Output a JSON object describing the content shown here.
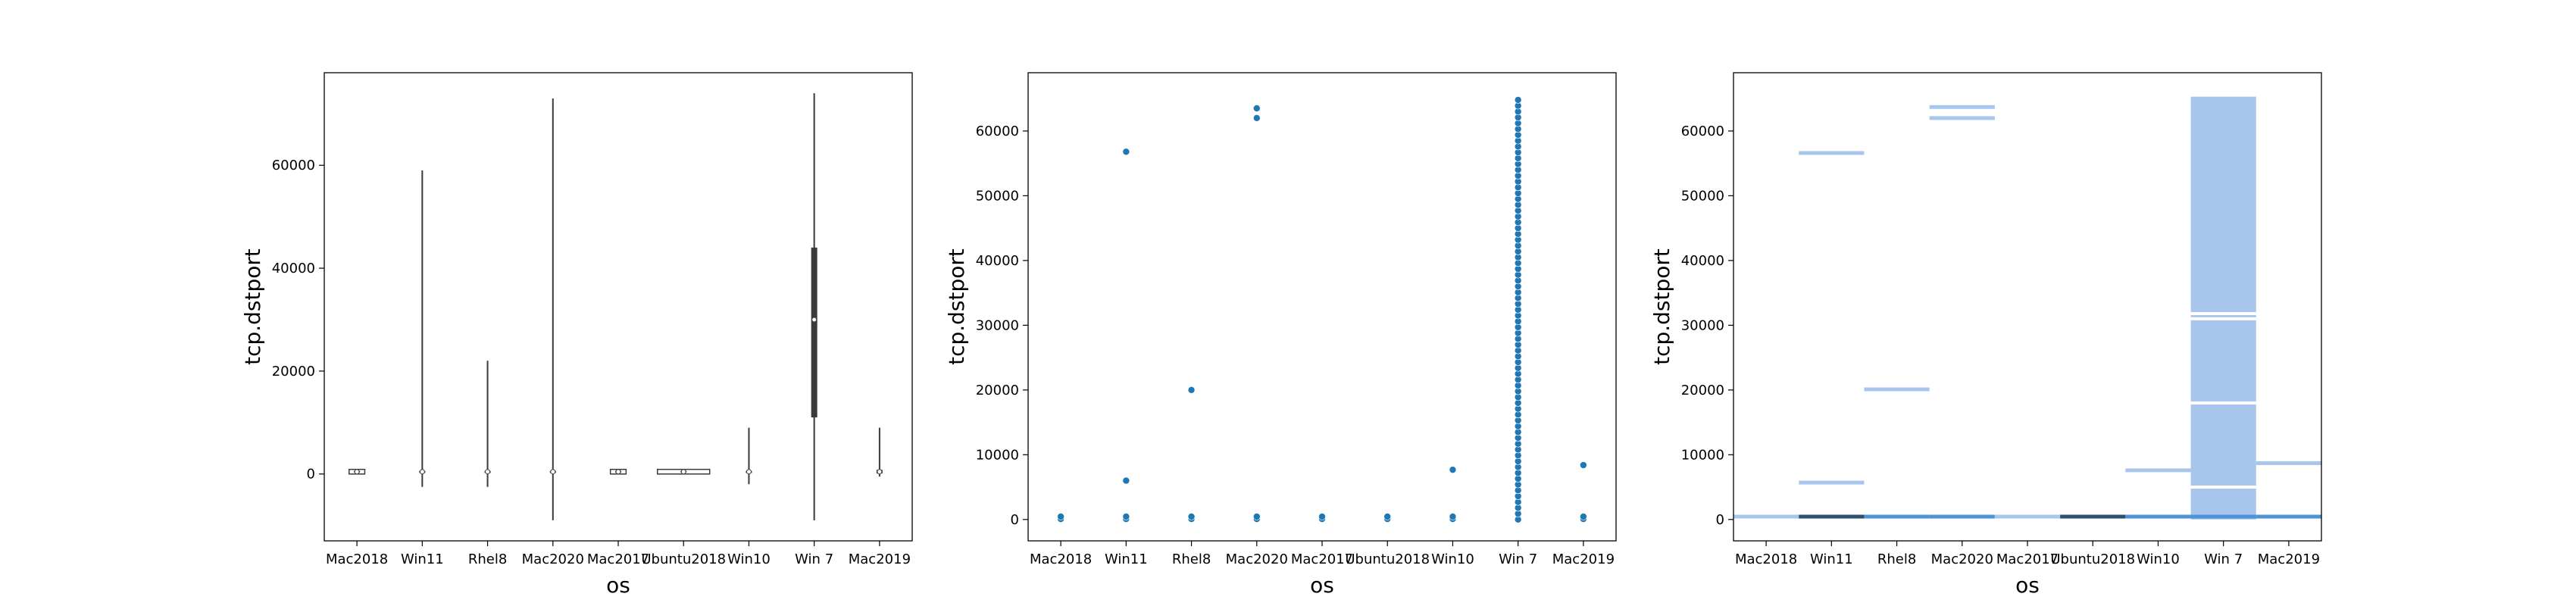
{
  "chart_data": [
    {
      "type": "violin",
      "xlabel": "os",
      "ylabel": "tcp.dstport",
      "categories": [
        "Mac2018",
        "Win11",
        "Rhel8",
        "Mac2020",
        "Mac2017",
        "Ubuntu2018",
        "Win10",
        "Win 7",
        "Mac2019"
      ],
      "ylim": [
        -13000,
        78000
      ],
      "yticks": [
        0,
        20000,
        40000,
        60000
      ],
      "violins": [
        {
          "category": "Mac2018",
          "min": 0,
          "max": 900,
          "q1": 300,
          "median": 443,
          "q3": 600,
          "halfwidth": 0.12
        },
        {
          "category": "Win11",
          "min": -2500,
          "max": 59000,
          "q1": 200,
          "median": 443,
          "q3": 600,
          "halfwidth": 0.02
        },
        {
          "category": "Rhel8",
          "min": -2500,
          "max": 22000,
          "q1": 200,
          "median": 443,
          "q3": 600,
          "halfwidth": 0.03
        },
        {
          "category": "Mac2020",
          "min": -9000,
          "max": 73000,
          "q1": 200,
          "median": 443,
          "q3": 600,
          "halfwidth": 0.02
        },
        {
          "category": "Mac2017",
          "min": 0,
          "max": 900,
          "q1": 300,
          "median": 443,
          "q3": 600,
          "halfwidth": 0.12
        },
        {
          "category": "Ubuntu2018",
          "min": 0,
          "max": 900,
          "q1": 300,
          "median": 443,
          "q3": 600,
          "halfwidth": 0.4
        },
        {
          "category": "Win10",
          "min": -2000,
          "max": 9000,
          "q1": 200,
          "median": 443,
          "q3": 600,
          "halfwidth": 0.03
        },
        {
          "category": "Win 7",
          "min": -9000,
          "max": 74000,
          "q1": 11000,
          "median": 30000,
          "q3": 44000,
          "halfwidth": 0.02
        },
        {
          "category": "Mac2019",
          "min": -500,
          "max": 9000,
          "q1": 100,
          "median": 443,
          "q3": 800,
          "halfwidth": 0.03
        }
      ]
    },
    {
      "type": "scatter",
      "xlabel": "os",
      "ylabel": "tcp.dstport",
      "categories": [
        "Mac2018",
        "Win11",
        "Rhel8",
        "Mac2020",
        "Mac2017",
        "Ubuntu2018",
        "Win10",
        "Win 7",
        "Mac2019"
      ],
      "ylim": [
        -3300,
        69000
      ],
      "yticks": [
        0,
        10000,
        20000,
        30000,
        40000,
        50000,
        60000
      ],
      "color": "#1f77b4",
      "points": [
        {
          "category": "Mac2018",
          "y": [
            80,
            443
          ]
        },
        {
          "category": "Win11",
          "y": [
            80,
            443,
            6000,
            56800
          ]
        },
        {
          "category": "Rhel8",
          "y": [
            80,
            443,
            20000
          ]
        },
        {
          "category": "Mac2020",
          "y": [
            80,
            443,
            62000,
            63500
          ]
        },
        {
          "category": "Mac2017",
          "y": [
            80,
            443
          ]
        },
        {
          "category": "Ubuntu2018",
          "y": [
            80,
            443
          ]
        },
        {
          "category": "Win10",
          "y": [
            80,
            443,
            7680
          ]
        },
        {
          "category": "Win 7",
          "range": [
            0,
            65000
          ],
          "step": 900
        },
        {
          "category": "Mac2019",
          "y": [
            80,
            443,
            8400
          ]
        }
      ]
    },
    {
      "type": "histogram",
      "xlabel": "os",
      "ylabel": "tcp.dstport",
      "categories": [
        "Mac2018",
        "Win11",
        "Rhel8",
        "Mac2020",
        "Mac2017",
        "Ubuntu2018",
        "Win10",
        "Win 7",
        "Mac2019"
      ],
      "ylim": [
        -3300,
        69000
      ],
      "yticks": [
        0,
        10000,
        20000,
        30000,
        40000,
        50000,
        60000
      ],
      "colors": {
        "light": "#a8c6ec",
        "medium": "#4f93d6",
        "dark": "#2e4f6e",
        "white": "#ffffff"
      },
      "full_column_category": "Win 7",
      "full_column_range": [
        0,
        65300
      ],
      "white_gaps": [
        5000,
        18000,
        31000,
        31800
      ],
      "bars": [
        {
          "category": "Mac2018",
          "y": 443,
          "shade": "light"
        },
        {
          "category": "Win11",
          "y": 443,
          "shade": "dark"
        },
        {
          "category": "Win11",
          "y": 5700,
          "shade": "light"
        },
        {
          "category": "Win11",
          "y": 56600,
          "shade": "light"
        },
        {
          "category": "Rhel8",
          "y": 443,
          "shade": "medium"
        },
        {
          "category": "Rhel8",
          "y": 20100,
          "shade": "light"
        },
        {
          "category": "Mac2020",
          "y": 443,
          "shade": "medium"
        },
        {
          "category": "Mac2020",
          "y": 62000,
          "shade": "light"
        },
        {
          "category": "Mac2020",
          "y": 63700,
          "shade": "light"
        },
        {
          "category": "Mac2017",
          "y": 443,
          "shade": "light"
        },
        {
          "category": "Ubuntu2018",
          "y": 443,
          "shade": "dark"
        },
        {
          "category": "Win10",
          "y": 443,
          "shade": "medium"
        },
        {
          "category": "Win10",
          "y": 7600,
          "shade": "light"
        },
        {
          "category": "Win 7",
          "y": 443,
          "shade": "medium"
        },
        {
          "category": "Mac2019",
          "y": 443,
          "shade": "medium"
        },
        {
          "category": "Mac2019",
          "y": 8700,
          "shade": "light"
        }
      ]
    }
  ]
}
